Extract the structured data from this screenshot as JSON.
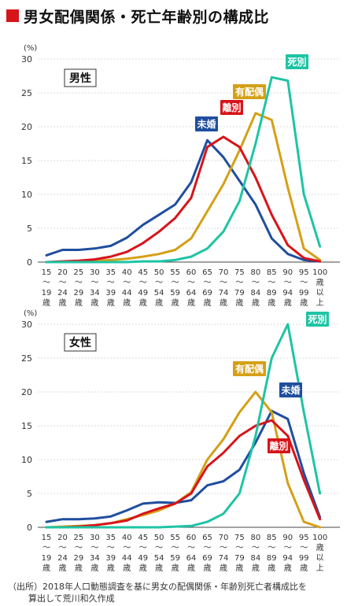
{
  "title": "男女配偶関係・死亡年齢別の構成比",
  "unit": "(%)",
  "colors": {
    "title_mark": "#d7141a",
    "未婚": "#1f4e9e",
    "有配偶": "#d4a017",
    "離別": "#d7141a",
    "死別": "#1ec4a4"
  },
  "x_ticks": [
    [
      "15",
      "～",
      "19",
      "歳"
    ],
    [
      "20",
      "～",
      "24",
      "歳"
    ],
    [
      "25",
      "～",
      "29",
      "歳"
    ],
    [
      "30",
      "～",
      "34",
      "歳"
    ],
    [
      "35",
      "～",
      "39",
      "歳"
    ],
    [
      "40",
      "～",
      "44",
      "歳"
    ],
    [
      "45",
      "～",
      "49",
      "歳"
    ],
    [
      "50",
      "～",
      "54",
      "歳"
    ],
    [
      "55",
      "～",
      "59",
      "歳"
    ],
    [
      "60",
      "～",
      "64",
      "歳"
    ],
    [
      "65",
      "～",
      "69",
      "歳"
    ],
    [
      "70",
      "～",
      "74",
      "歳"
    ],
    [
      "75",
      "～",
      "79",
      "歳"
    ],
    [
      "80",
      "～",
      "84",
      "歳"
    ],
    [
      "85",
      "～",
      "89",
      "歳"
    ],
    [
      "90",
      "～",
      "94",
      "歳"
    ],
    [
      "95",
      "～",
      "99",
      "歳"
    ],
    [
      "100",
      "歳",
      "以",
      "上"
    ]
  ],
  "chart_data": [
    {
      "type": "line",
      "title": "男性",
      "ylabel": "(%)",
      "ylim": [
        0,
        30
      ],
      "yticks": [
        0,
        5,
        10,
        15,
        20,
        25,
        30
      ],
      "categories": [
        "15～19歳",
        "20～24歳",
        "25～29歳",
        "30～34歳",
        "35～39歳",
        "40～44歳",
        "45～49歳",
        "50～54歳",
        "55～59歳",
        "60～64歳",
        "65～69歳",
        "70～74歳",
        "75～79歳",
        "80～84歳",
        "85～89歳",
        "90～94歳",
        "95～99歳",
        "100歳以上"
      ],
      "series": [
        {
          "name": "未婚",
          "values": [
            1.0,
            1.8,
            1.8,
            2.0,
            2.4,
            3.6,
            5.5,
            7.0,
            8.5,
            11.8,
            18.0,
            15.5,
            12.0,
            8.5,
            3.5,
            1.2,
            0.3,
            0.1
          ]
        },
        {
          "name": "有配偶",
          "values": [
            0.0,
            0.0,
            0.1,
            0.2,
            0.3,
            0.5,
            0.8,
            1.2,
            1.8,
            3.5,
            7.5,
            11.5,
            16.5,
            22.0,
            21.0,
            11.0,
            2.0,
            0.3
          ]
        },
        {
          "name": "離別",
          "values": [
            0.0,
            0.1,
            0.2,
            0.4,
            0.8,
            1.5,
            2.8,
            4.5,
            6.5,
            9.5,
            17.0,
            18.5,
            17.0,
            12.5,
            7.0,
            2.5,
            0.6,
            0.1
          ]
        },
        {
          "name": "死別",
          "values": [
            0.0,
            0.0,
            0.0,
            0.0,
            0.0,
            0.0,
            0.1,
            0.1,
            0.3,
            0.8,
            2.0,
            4.5,
            9.0,
            17.5,
            27.3,
            26.8,
            10.0,
            2.3
          ]
        }
      ]
    },
    {
      "type": "line",
      "title": "女性",
      "ylabel": "(%)",
      "ylim": [
        0,
        30
      ],
      "yticks": [
        0,
        5,
        10,
        15,
        20,
        25,
        30
      ],
      "categories": [
        "15～19歳",
        "20～24歳",
        "25～29歳",
        "30～34歳",
        "35～39歳",
        "40～44歳",
        "45～49歳",
        "50～54歳",
        "55～59歳",
        "60～64歳",
        "65～69歳",
        "70～74歳",
        "75～79歳",
        "80～84歳",
        "85～89歳",
        "90～94歳",
        "95～99歳",
        "100歳以上"
      ],
      "series": [
        {
          "name": "未婚",
          "values": [
            0.8,
            1.2,
            1.2,
            1.3,
            1.6,
            2.5,
            3.5,
            3.7,
            3.6,
            4.0,
            6.2,
            6.8,
            8.5,
            12.5,
            17.2,
            16.0,
            8.0,
            1.5
          ]
        },
        {
          "name": "有配偶",
          "values": [
            0.0,
            0.1,
            0.2,
            0.3,
            0.6,
            1.2,
            1.8,
            2.5,
            3.5,
            5.2,
            10.0,
            13.0,
            17.0,
            20.0,
            17.0,
            6.5,
            0.8,
            0.0
          ]
        },
        {
          "name": "離別",
          "values": [
            0.0,
            0.0,
            0.1,
            0.3,
            0.6,
            1.0,
            2.0,
            2.8,
            3.5,
            5.0,
            9.0,
            11.0,
            13.5,
            15.0,
            15.8,
            13.5,
            7.0,
            1.2
          ]
        },
        {
          "name": "死別",
          "values": [
            0.0,
            0.0,
            0.0,
            0.0,
            0.0,
            0.0,
            0.0,
            0.0,
            0.1,
            0.2,
            0.8,
            2.0,
            5.0,
            13.5,
            25.0,
            30.0,
            17.0,
            5.0
          ]
        }
      ]
    }
  ],
  "source": {
    "line1": "（出所）2018年人口動態調査を基に男女の配偶関係・年齢別死亡者構成比を",
    "line2": "算出して荒川和久作成"
  }
}
